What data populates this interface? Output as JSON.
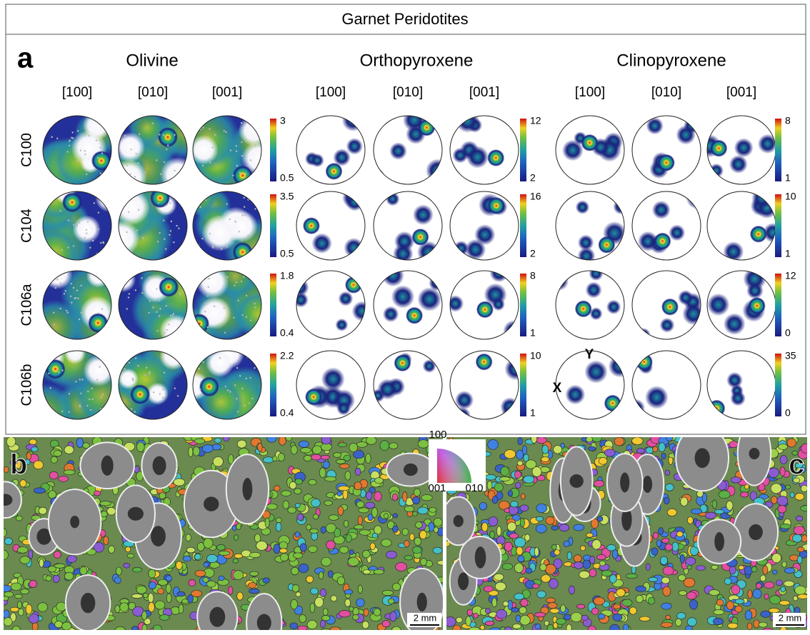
{
  "title": "Garnet Peridotites",
  "panels": {
    "a": "a",
    "b": "b",
    "c": "c"
  },
  "samples": [
    "C100",
    "C104",
    "C106a",
    "C106b"
  ],
  "minerals": [
    {
      "name": "Olivine",
      "axes": [
        "[100]",
        "[010]",
        "[001]"
      ],
      "scales": [
        {
          "max": 3,
          "min": 0.5
        },
        {
          "max": 3.5,
          "min": 0.5
        },
        {
          "max": 1.8,
          "min": 0.4
        },
        {
          "max": 2.2,
          "min": 0.4
        }
      ]
    },
    {
      "name": "Orthopyroxene",
      "axes": [
        "[100]",
        "[010]",
        "[001]"
      ],
      "scales": [
        {
          "max": 12,
          "min": 2
        },
        {
          "max": 16,
          "min": 2
        },
        {
          "max": 8,
          "min": 1
        },
        {
          "max": 10,
          "min": 1
        }
      ]
    },
    {
      "name": "Clinopyroxene",
      "axes": [
        "[100]",
        "[010]",
        "[001]"
      ],
      "scales": [
        {
          "max": 8,
          "min": 1
        },
        {
          "max": 10,
          "min": 1
        },
        {
          "max": 12,
          "min": 0
        },
        {
          "max": 35,
          "min": 0
        }
      ]
    }
  ],
  "directions": {
    "x": "X",
    "y": "Y"
  },
  "ipf_legend": {
    "top": "100",
    "left": "001",
    "right": "010"
  },
  "scale_bars": [
    "2 mm",
    "2 mm"
  ]
}
